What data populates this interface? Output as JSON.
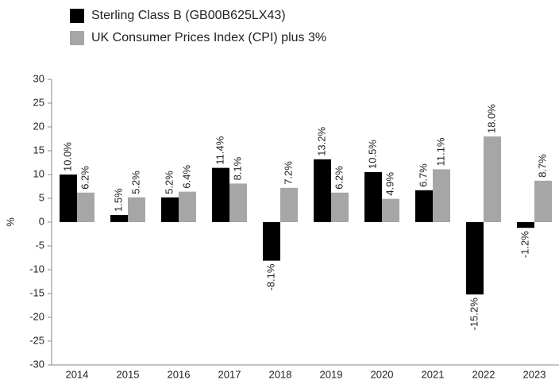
{
  "chart_data": {
    "type": "bar",
    "y_label": "%",
    "categories": [
      "2014",
      "2015",
      "2016",
      "2017",
      "2018",
      "2019",
      "2020",
      "2021",
      "2022",
      "2023"
    ],
    "series": [
      {
        "name": "Sterling Class B (GB00B625LX43)",
        "color": "#000000",
        "values": [
          10.0,
          1.5,
          5.2,
          11.4,
          -8.1,
          13.2,
          10.5,
          6.7,
          -15.2,
          -1.2
        ],
        "value_labels": [
          "10.0%",
          "1.5%",
          "5.2%",
          "11.4%",
          "-8.1%",
          "13.2%",
          "10.5%",
          "6.7%",
          "-15.2%",
          "-1.2%"
        ]
      },
      {
        "name": "UK Consumer Prices Index (CPI) plus 3%",
        "color": "#a6a6a6",
        "values": [
          6.2,
          5.2,
          6.4,
          8.1,
          7.2,
          6.2,
          4.9,
          11.1,
          18.0,
          8.7
        ],
        "value_labels": [
          "6.2%",
          "5.2%",
          "6.4%",
          "8.1%",
          "7.2%",
          "6.2%",
          "4.9%",
          "11.1%",
          "18.0%",
          "8.7%"
        ]
      }
    ],
    "ylim": [
      -30,
      30
    ],
    "yticks": [
      -30,
      -25,
      -20,
      -15,
      -10,
      -5,
      0,
      5,
      10,
      15,
      20,
      25,
      30
    ],
    "grid": false,
    "legend": "top-left"
  }
}
